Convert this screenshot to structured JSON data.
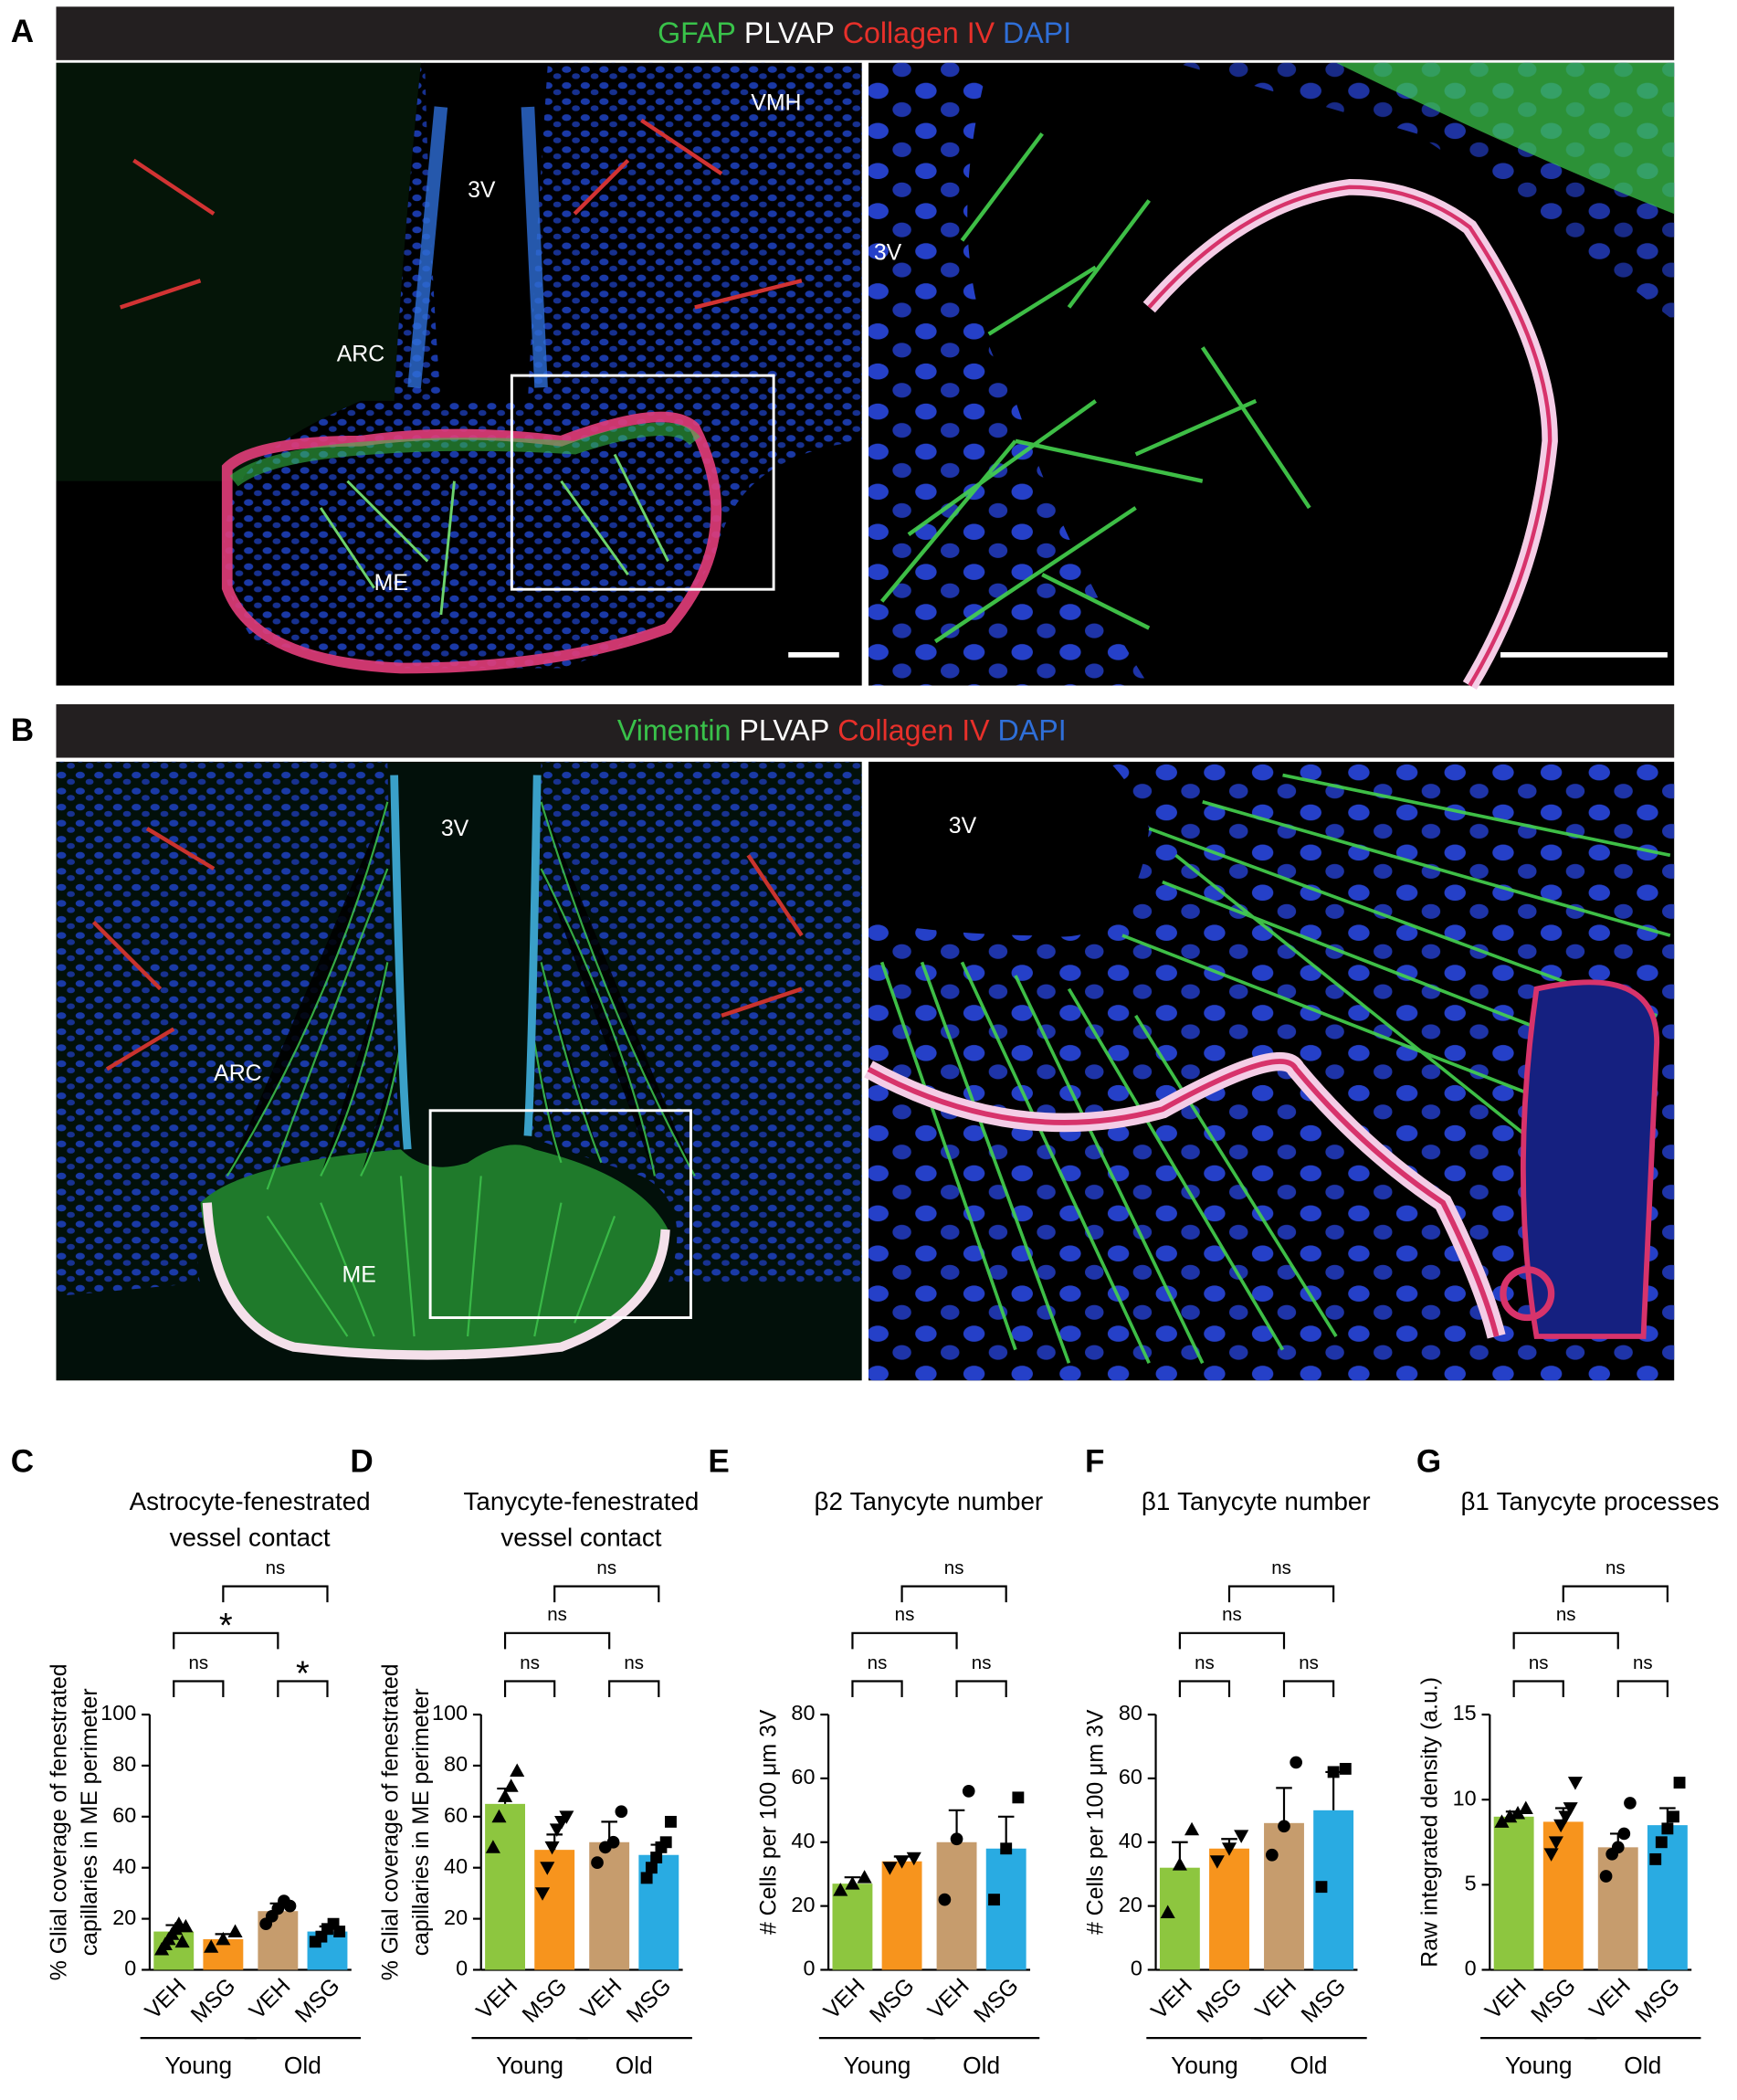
{
  "panels": [
    {
      "letter": "A",
      "stains": [
        {
          "text": "GFAP",
          "color": "#39c24a"
        },
        {
          "text": "PLVAP",
          "color": "#ffffff"
        },
        {
          "text": "Collagen IV",
          "color": "#e8302a"
        },
        {
          "text": "DAPI",
          "color": "#2f6fd8"
        }
      ],
      "labels": [
        "3V",
        "VMH",
        "ARC",
        "ME",
        "3V"
      ]
    },
    {
      "letter": "B",
      "stains": [
        {
          "text": "Vimentin",
          "color": "#39c24a"
        },
        {
          "text": "PLVAP",
          "color": "#ffffff"
        },
        {
          "text": "Collagen IV",
          "color": "#e8302a"
        },
        {
          "text": "DAPI",
          "color": "#2f6fd8"
        }
      ],
      "labels": [
        "3V",
        "ARC",
        "ME",
        "3V"
      ]
    }
  ],
  "chart_data": [
    {
      "type": "bar",
      "letter": "C",
      "title": [
        "Astrocyte-fenestrated",
        "vessel contact"
      ],
      "y_label": [
        "% Glial coverage of fenestrated",
        "capillaries in ME perimeter"
      ],
      "categories": [
        "VEH",
        "MSG",
        "VEH",
        "MSG"
      ],
      "groups": [
        "Young",
        "Old"
      ],
      "colors": [
        "#8dc63f",
        "#f7941d",
        "#c69c6d",
        "#29abe2"
      ],
      "markers": [
        "triangle",
        "triangle",
        "circle",
        "square"
      ],
      "values": [
        15,
        12,
        23,
        15
      ],
      "errors": [
        2.5,
        2,
        3,
        2
      ],
      "points": [
        [
          8,
          10,
          12,
          14,
          16,
          18,
          11,
          17
        ],
        [
          9,
          12,
          15
        ],
        [
          18,
          21,
          24,
          27,
          25
        ],
        [
          11,
          13,
          16,
          18,
          15
        ]
      ],
      "ylim": [
        0,
        100
      ],
      "yticks": [
        0,
        20,
        40,
        60,
        80,
        100
      ],
      "comparisons": [
        {
          "pair": [
            0,
            1
          ],
          "label": "ns"
        },
        {
          "pair": [
            2,
            3
          ],
          "label": "*"
        },
        {
          "pair": [
            0,
            2
          ],
          "label": "*"
        },
        {
          "pair": [
            1,
            3
          ],
          "label": "ns"
        }
      ]
    },
    {
      "type": "bar",
      "letter": "D",
      "title": [
        "Tanycyte-fenestrated",
        "vessel contact"
      ],
      "y_label": [
        "% Glial coverage of fenestrated",
        "capillaries in ME perimeter"
      ],
      "categories": [
        "VEH",
        "MSG",
        "VEH",
        "MSG"
      ],
      "groups": [
        "Young",
        "Old"
      ],
      "colors": [
        "#8dc63f",
        "#f7941d",
        "#c69c6d",
        "#29abe2"
      ],
      "markers": [
        "triangle",
        "triangle-down",
        "circle",
        "square"
      ],
      "values": [
        65,
        47,
        50,
        45
      ],
      "errors": [
        6,
        6,
        8,
        4
      ],
      "points": [
        [
          48,
          60,
          68,
          72,
          78
        ],
        [
          30,
          40,
          48,
          55,
          58,
          60
        ],
        [
          42,
          48,
          50,
          62
        ],
        [
          36,
          40,
          44,
          48,
          50,
          58
        ]
      ],
      "ylim": [
        0,
        100
      ],
      "yticks": [
        0,
        20,
        40,
        60,
        80,
        100
      ],
      "comparisons": [
        {
          "pair": [
            0,
            1
          ],
          "label": "ns"
        },
        {
          "pair": [
            2,
            3
          ],
          "label": "ns"
        },
        {
          "pair": [
            0,
            2
          ],
          "label": "ns"
        },
        {
          "pair": [
            1,
            3
          ],
          "label": "ns"
        }
      ]
    },
    {
      "type": "bar",
      "letter": "E",
      "title": [
        "β2 Tanycyte number"
      ],
      "y_label": [
        "# Cells per 100 μm 3V"
      ],
      "categories": [
        "VEH",
        "MSG",
        "VEH",
        "MSG"
      ],
      "groups": [
        "Young",
        "Old"
      ],
      "colors": [
        "#8dc63f",
        "#f7941d",
        "#c69c6d",
        "#29abe2"
      ],
      "markers": [
        "triangle",
        "triangle-down",
        "circle",
        "square"
      ],
      "values": [
        27,
        34,
        40,
        38
      ],
      "errors": [
        2,
        1.5,
        10,
        10
      ],
      "points": [
        [
          25,
          27,
          29
        ],
        [
          32,
          34,
          35
        ],
        [
          22,
          41,
          56
        ],
        [
          22,
          38,
          54
        ]
      ],
      "ylim": [
        0,
        80
      ],
      "yticks": [
        0,
        20,
        40,
        60,
        80
      ],
      "comparisons": [
        {
          "pair": [
            0,
            1
          ],
          "label": "ns"
        },
        {
          "pair": [
            2,
            3
          ],
          "label": "ns"
        },
        {
          "pair": [
            0,
            2
          ],
          "label": "ns"
        },
        {
          "pair": [
            1,
            3
          ],
          "label": "ns"
        }
      ]
    },
    {
      "type": "bar",
      "letter": "F",
      "title": [
        "β1 Tanycyte number"
      ],
      "y_label": [
        "# Cells per 100 μm 3V"
      ],
      "categories": [
        "VEH",
        "MSG",
        "VEH",
        "MSG"
      ],
      "groups": [
        "Young",
        "Old"
      ],
      "colors": [
        "#8dc63f",
        "#f7941d",
        "#c69c6d",
        "#29abe2"
      ],
      "markers": [
        "triangle",
        "triangle-down",
        "circle",
        "square"
      ],
      "values": [
        32,
        38,
        46,
        50
      ],
      "errors": [
        8,
        3,
        11,
        12
      ],
      "points": [
        [
          18,
          33,
          44
        ],
        [
          34,
          38,
          42
        ],
        [
          36,
          45,
          65
        ],
        [
          26,
          62,
          63
        ]
      ],
      "ylim": [
        0,
        80
      ],
      "yticks": [
        0,
        20,
        40,
        60,
        80
      ],
      "comparisons": [
        {
          "pair": [
            0,
            1
          ],
          "label": "ns"
        },
        {
          "pair": [
            2,
            3
          ],
          "label": "ns"
        },
        {
          "pair": [
            0,
            2
          ],
          "label": "ns"
        },
        {
          "pair": [
            1,
            3
          ],
          "label": "ns"
        }
      ]
    },
    {
      "type": "bar",
      "letter": "G",
      "title": [
        "β1 Tanycyte processes"
      ],
      "y_label": [
        "Raw integrated density (a.u.)"
      ],
      "categories": [
        "VEH",
        "MSG",
        "VEH",
        "MSG"
      ],
      "groups": [
        "Young",
        "Old"
      ],
      "colors": [
        "#8dc63f",
        "#f7941d",
        "#c69c6d",
        "#29abe2"
      ],
      "markers": [
        "triangle",
        "triangle-down",
        "circle",
        "square"
      ],
      "values": [
        9,
        8.7,
        7.2,
        8.5
      ],
      "errors": [
        0.3,
        0.8,
        0.8,
        1
      ],
      "points": [
        [
          8.7,
          9,
          9.2,
          9.5
        ],
        [
          6.8,
          7.5,
          8.5,
          9,
          9.5,
          11
        ],
        [
          5.5,
          6.8,
          7.2,
          8,
          9.8
        ],
        [
          6.5,
          7.5,
          8.3,
          9,
          11
        ]
      ],
      "ylim": [
        0,
        15
      ],
      "yticks": [
        0,
        5,
        10,
        15
      ],
      "comparisons": [
        {
          "pair": [
            0,
            1
          ],
          "label": "ns"
        },
        {
          "pair": [
            2,
            3
          ],
          "label": "ns"
        },
        {
          "pair": [
            0,
            2
          ],
          "label": "ns"
        },
        {
          "pair": [
            1,
            3
          ],
          "label": "ns"
        }
      ]
    }
  ]
}
